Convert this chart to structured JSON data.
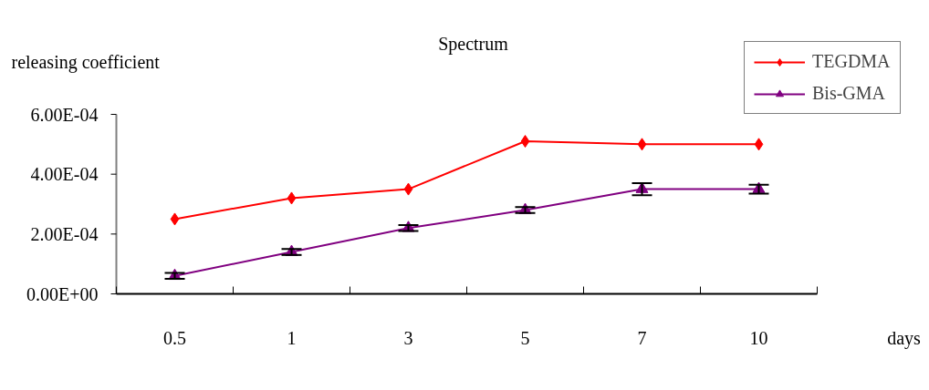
{
  "chart_data": {
    "type": "line",
    "title": "Spectrum",
    "xlabel": "days",
    "ylabel": "releasing coefficient",
    "categories": [
      "0.5",
      "1",
      "3",
      "5",
      "7",
      "10"
    ],
    "series": [
      {
        "name": "TEGDMA",
        "color": "#ff0000",
        "marker": "diamond",
        "values": [
          0.00025,
          0.00032,
          0.00035,
          0.00051,
          0.0005,
          0.0005
        ]
      },
      {
        "name": "Bis-GMA",
        "color": "#800080",
        "marker": "triangle",
        "values": [
          6e-05,
          0.00014,
          0.00022,
          0.00028,
          0.00035,
          0.00035
        ],
        "errors": [
          1e-05,
          1e-05,
          1e-05,
          1e-05,
          2e-05,
          1.5e-05
        ]
      }
    ],
    "ylim": [
      0,
      0.0006
    ],
    "yticks": [
      {
        "value": 0,
        "label": "0.00E+00"
      },
      {
        "value": 0.0002,
        "label": "2.00E-04"
      },
      {
        "value": 0.0004,
        "label": "4.00E-04"
      },
      {
        "value": 0.0006,
        "label": "6.00E-04"
      }
    ],
    "grid": false,
    "legend": "top right",
    "line_style": "solid"
  }
}
